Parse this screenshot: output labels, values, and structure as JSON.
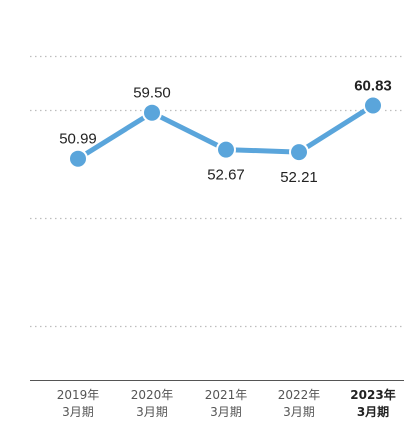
{
  "chart_data": {
    "type": "line",
    "categories": [
      [
        "2019年",
        "3月期"
      ],
      [
        "2020年",
        "3月期"
      ],
      [
        "2021年",
        "3月期"
      ],
      [
        "2022年",
        "3月期"
      ],
      [
        "2023年",
        "3月期"
      ]
    ],
    "values": [
      50.99,
      59.5,
      52.67,
      52.21,
      60.83
    ],
    "value_labels": [
      "50.99",
      "59.50",
      "52.67",
      "52.21",
      "60.83"
    ],
    "highlight_index": 4,
    "ylim": [
      10,
      70
    ],
    "gridlines": [
      20,
      40,
      60
    ],
    "grid": true,
    "line_color": "#5aa5db",
    "title": "",
    "xlabel": "",
    "ylabel": ""
  }
}
